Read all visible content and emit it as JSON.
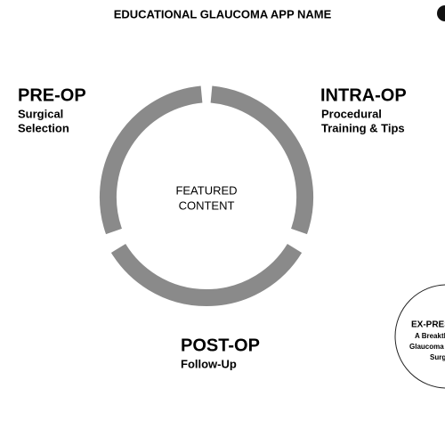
{
  "header": {
    "title": "EDUCATIONAL GLAUCOMA APP NAME"
  },
  "center": {
    "lines": [
      "FEATURED",
      "CONTENT"
    ]
  },
  "sections": [
    {
      "title": "PRE-OP",
      "lines": [
        "Surgical",
        "Selection"
      ]
    },
    {
      "title": "INTRA-OP",
      "lines": [
        "Procedural",
        "Training & Tips"
      ]
    },
    {
      "title": "POST-OP",
      "lines": [
        "Follow-Up"
      ]
    }
  ],
  "promo": {
    "title": "EX-PRES",
    "lines": [
      "A Breakth",
      "Glaucoma",
      "Surg"
    ]
  }
}
